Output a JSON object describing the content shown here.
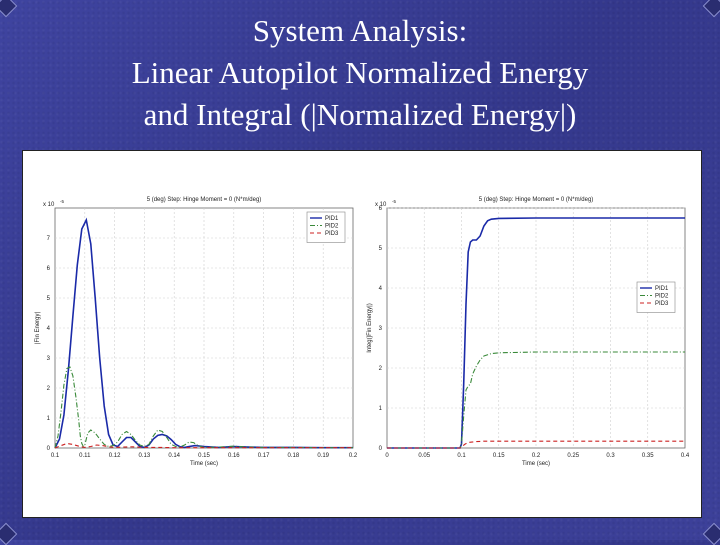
{
  "slide": {
    "title_lines": [
      "System Analysis:",
      "Linear Autopilot Normalized Energy",
      "and Integral (|Normalized Energy|)"
    ]
  },
  "chart_data": [
    {
      "type": "line",
      "title": "5 (deg) Step: Hinge Moment = 0 (N*m/deg)",
      "exponent_label": "x 10",
      "exponent_sup": "-5",
      "xlabel": "Time (sec)",
      "ylabel": "|Fin Energy|",
      "xlim": [
        0.1,
        0.2
      ],
      "ylim": [
        0,
        8
      ],
      "x_ticks": [
        "0.1",
        "0.11",
        "0.12",
        "0.13",
        "0.14",
        "0.15",
        "0.16",
        "0.17",
        "0.18",
        "0.19",
        "0.2"
      ],
      "y_ticks": [
        "0",
        "1",
        "2",
        "3",
        "4",
        "5",
        "6",
        "7"
      ],
      "grid": true,
      "legend": "top-right",
      "series": [
        {
          "name": "PID1",
          "color": "#1a2aa8",
          "dash": "",
          "x": [
            0.1,
            0.1015,
            0.103,
            0.1045,
            0.106,
            0.1075,
            0.109,
            0.1105,
            0.112,
            0.1135,
            0.115,
            0.1165,
            0.118,
            0.1195,
            0.121,
            0.1225,
            0.124,
            0.1255,
            0.127,
            0.1285,
            0.13,
            0.1315,
            0.133,
            0.1345,
            0.136,
            0.1375,
            0.139,
            0.1405,
            0.142,
            0.1435,
            0.145,
            0.147,
            0.15,
            0.155,
            0.16,
            0.165,
            0.17,
            0.18,
            0.19,
            0.2
          ],
          "y": [
            0,
            0.3,
            1.1,
            2.6,
            4.4,
            6.1,
            7.3,
            7.6,
            6.8,
            5.0,
            3.0,
            1.4,
            0.45,
            0.1,
            0.05,
            0.2,
            0.35,
            0.35,
            0.2,
            0.05,
            0.02,
            0.1,
            0.3,
            0.42,
            0.45,
            0.4,
            0.28,
            0.12,
            0.04,
            0.02,
            0.05,
            0.08,
            0.05,
            0.02,
            0.05,
            0.03,
            0.02,
            0.02,
            0.01,
            0.01
          ]
        },
        {
          "name": "PID2",
          "color": "#3a8a3a",
          "dash": "5,2,1,2",
          "x": [
            0.1,
            0.101,
            0.102,
            0.103,
            0.104,
            0.105,
            0.106,
            0.107,
            0.108,
            0.1085,
            0.109,
            0.1095,
            0.11,
            0.1105,
            0.111,
            0.112,
            0.1135,
            0.115,
            0.1165,
            0.118,
            0.1195,
            0.121,
            0.1225,
            0.124,
            0.1255,
            0.127,
            0.1285,
            0.13,
            0.1315,
            0.133,
            0.1345,
            0.136,
            0.1375,
            0.139,
            0.1405,
            0.142,
            0.1435,
            0.145,
            0.1465,
            0.148,
            0.15,
            0.155,
            0.16,
            0.165,
            0.17,
            0.18,
            0.19,
            0.2
          ],
          "y": [
            0,
            0.4,
            1.2,
            2.1,
            2.65,
            2.7,
            2.4,
            1.7,
            0.9,
            0.4,
            0.15,
            0.05,
            0.1,
            0.3,
            0.5,
            0.6,
            0.5,
            0.3,
            0.12,
            0.05,
            0.08,
            0.2,
            0.45,
            0.55,
            0.45,
            0.25,
            0.1,
            0.05,
            0.12,
            0.4,
            0.6,
            0.55,
            0.35,
            0.12,
            0.05,
            0.04,
            0.1,
            0.2,
            0.18,
            0.08,
            0.02,
            0.03,
            0.06,
            0.03,
            0.02,
            0.02,
            0.01,
            0.01
          ]
        },
        {
          "name": "PID3",
          "color": "#cc2222",
          "dash": "4,3",
          "x": [
            0.1,
            0.102,
            0.104,
            0.106,
            0.108,
            0.11,
            0.112,
            0.114,
            0.116,
            0.118,
            0.12,
            0.123,
            0.126,
            0.13,
            0.135,
            0.14,
            0.15,
            0.16,
            0.17,
            0.18,
            0.19,
            0.2
          ],
          "y": [
            0,
            0.08,
            0.15,
            0.12,
            0.06,
            0.02,
            0.05,
            0.1,
            0.08,
            0.04,
            0.02,
            0.03,
            0.04,
            0.02,
            0.02,
            0.01,
            0.01,
            0.01,
            0.01,
            0.01,
            0.01,
            0.01
          ]
        }
      ]
    },
    {
      "type": "line",
      "title": "5 (deg) Step: Hinge Moment = 0 (N*m/deg)",
      "exponent_label": "x 10",
      "exponent_sup": "-5",
      "xlabel": "Time (sec)",
      "ylabel": "Integ(|Fin Energy|)",
      "xlim": [
        0,
        0.4
      ],
      "ylim": [
        0,
        6
      ],
      "x_ticks": [
        "0",
        "0.05",
        "0.1",
        "0.15",
        "0.2",
        "0.25",
        "0.3",
        "0.35",
        "0.4"
      ],
      "y_ticks": [
        "0",
        "1",
        "2",
        "3",
        "4",
        "5",
        "6"
      ],
      "grid": true,
      "legend": "right",
      "series": [
        {
          "name": "PID1",
          "color": "#1a2aa8",
          "dash": "",
          "x": [
            0,
            0.098,
            0.1,
            0.103,
            0.106,
            0.109,
            0.112,
            0.115,
            0.12,
            0.125,
            0.13,
            0.135,
            0.14,
            0.15,
            0.2,
            0.3,
            0.4
          ],
          "y": [
            0,
            0,
            0.1,
            1.6,
            3.6,
            4.9,
            5.15,
            5.2,
            5.2,
            5.3,
            5.55,
            5.68,
            5.72,
            5.74,
            5.75,
            5.75,
            5.75
          ]
        },
        {
          "name": "PID2",
          "color": "#3a8a3a",
          "dash": "5,2,1,2",
          "x": [
            0,
            0.098,
            0.1,
            0.103,
            0.106,
            0.109,
            0.112,
            0.115,
            0.12,
            0.125,
            0.13,
            0.14,
            0.15,
            0.2,
            0.3,
            0.4
          ],
          "y": [
            0,
            0,
            0.1,
            0.8,
            1.45,
            1.55,
            1.6,
            1.85,
            2.05,
            2.2,
            2.3,
            2.36,
            2.38,
            2.4,
            2.4,
            2.4
          ]
        },
        {
          "name": "PID3",
          "color": "#cc2222",
          "dash": "4,3",
          "x": [
            0,
            0.098,
            0.1,
            0.105,
            0.11,
            0.12,
            0.13,
            0.2,
            0.3,
            0.4
          ],
          "y": [
            0,
            0,
            0.03,
            0.1,
            0.14,
            0.16,
            0.17,
            0.17,
            0.17,
            0.17
          ]
        }
      ]
    }
  ]
}
